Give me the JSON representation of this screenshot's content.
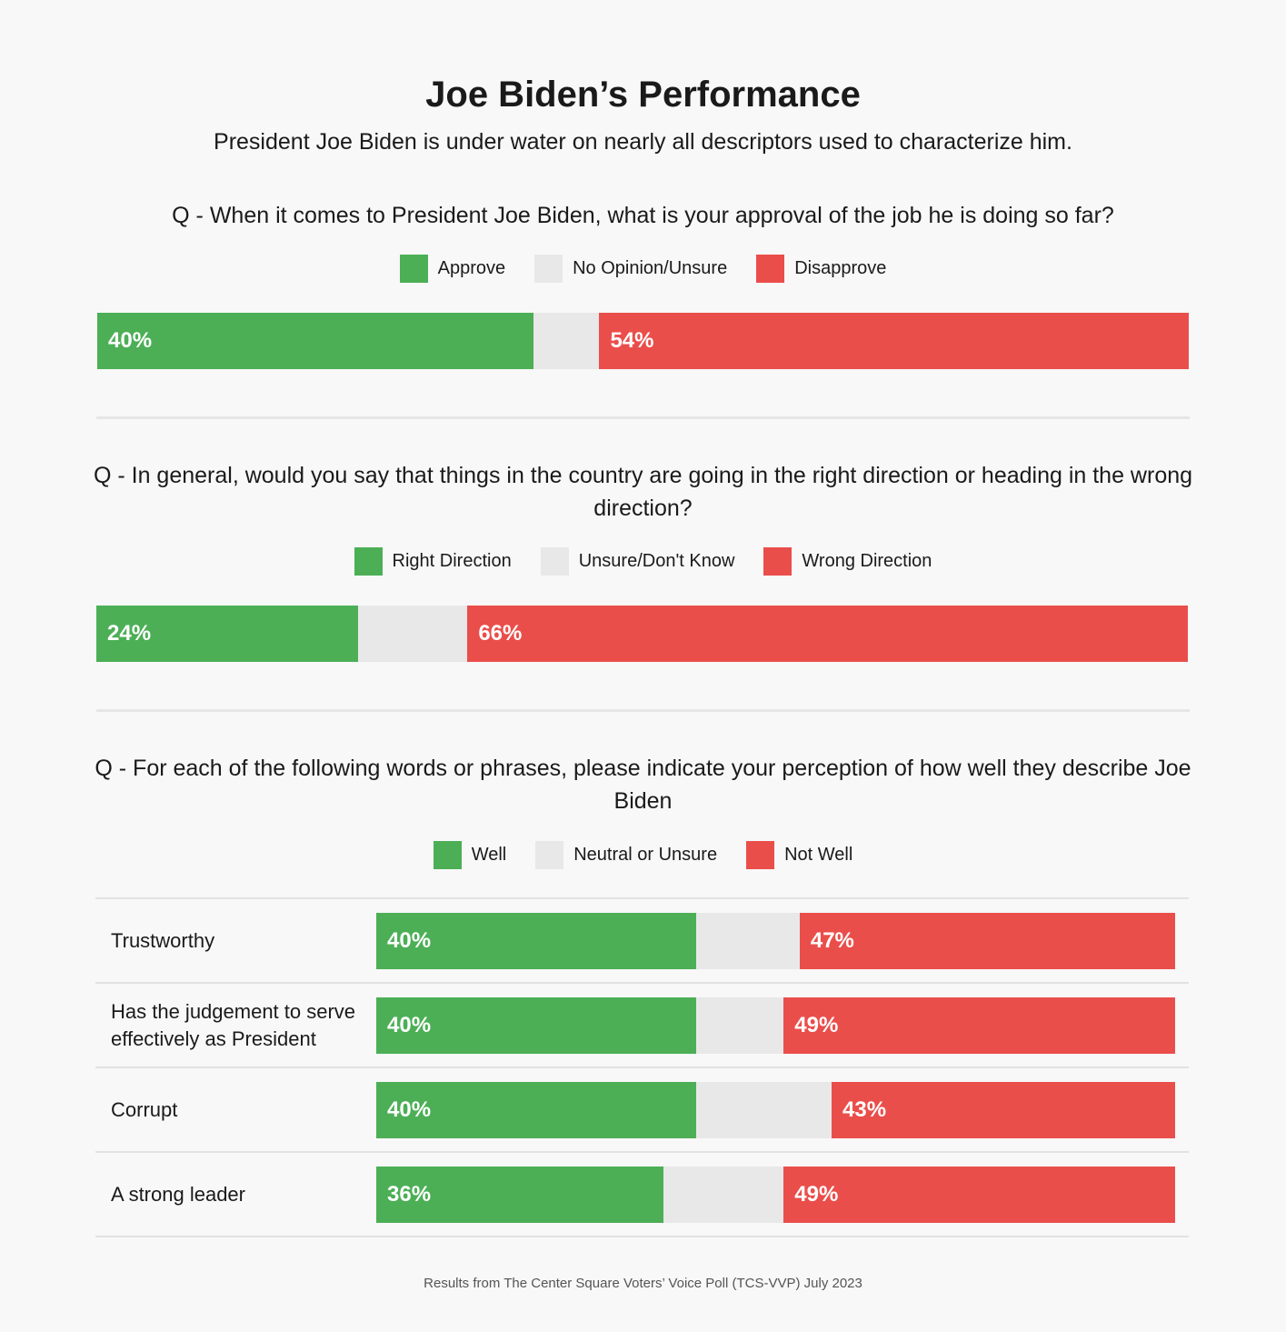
{
  "colors": {
    "positive": "#4caf56",
    "neutral": "#e8e8e8",
    "negative": "#ea4e4b"
  },
  "header": {
    "title": "Joe Biden’s Performance",
    "subtitle": "President Joe Biden is under water on nearly all descriptors used to characterize him."
  },
  "chart_data": [
    {
      "type": "bar",
      "orientation": "horizontal-stacked",
      "title": "Q - When it comes to President Joe Biden, what is your approval of the job he is doing so far?",
      "legend": [
        "Approve",
        "No Opinion/Unsure",
        "Disapprove"
      ],
      "legend_placement": "top",
      "values": [
        40,
        6,
        54
      ],
      "labels": [
        "40%",
        "",
        "54%"
      ]
    },
    {
      "type": "bar",
      "orientation": "horizontal-stacked",
      "title": "Q - In general, would you say that things in the country are going in the right direction or heading in the wrong direction?",
      "legend": [
        "Right Direction",
        "Unsure/Don't Know",
        "Wrong Direction"
      ],
      "legend_placement": "top",
      "values": [
        24,
        10,
        66
      ],
      "labels": [
        "24%",
        "",
        "66%"
      ]
    },
    {
      "type": "bar",
      "orientation": "horizontal-stacked",
      "title": "Q - For each of the following words or phrases, please indicate your perception of how well they describe Joe Biden",
      "legend": [
        "Well",
        "Neutral or Unsure",
        "Not Well"
      ],
      "legend_placement": "top",
      "categories": [
        "Trustworthy",
        "Has the judgement to serve effectively as President",
        "Corrupt",
        "A strong leader"
      ],
      "rows": [
        {
          "values": [
            40,
            13,
            47
          ],
          "labels": [
            "40%",
            "",
            "47%"
          ]
        },
        {
          "values": [
            40,
            11,
            49
          ],
          "labels": [
            "40%",
            "",
            "49%"
          ]
        },
        {
          "values": [
            40,
            17,
            43
          ],
          "labels": [
            "40%",
            "",
            "43%"
          ]
        },
        {
          "values": [
            36,
            15,
            49
          ],
          "labels": [
            "36%",
            "",
            "49%"
          ]
        }
      ]
    }
  ],
  "footer": "Results from The Center Square Voters’ Voice Poll (TCS-VVP) July 2023"
}
